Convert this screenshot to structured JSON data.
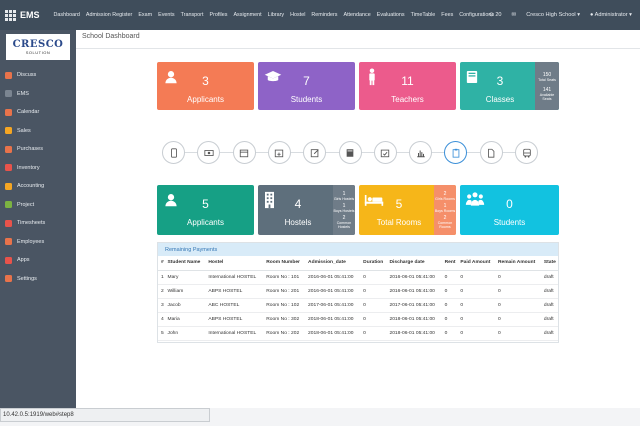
{
  "topbar": {
    "brand": "EMS",
    "menu": [
      "Dashboard",
      "Admission Register",
      "Exam",
      "Events",
      "Transport",
      "Profiles",
      "Assignment",
      "Library",
      "Hostel",
      "Reminders",
      "Attendance",
      "Evaluations",
      "TimeTable",
      "Fees",
      "Configurations"
    ],
    "notifications": "20",
    "company": "Cresco High School",
    "user": "Administrator"
  },
  "sidebar": {
    "logo_main": "CRESCO",
    "logo_sub": "SOLUTION",
    "items": [
      {
        "label": "Discuss",
        "icon": "chat-icon",
        "color": "#e8734b"
      },
      {
        "label": "EMS",
        "icon": "school-icon",
        "color": "#7b8591"
      },
      {
        "label": "Calendar",
        "icon": "calendar-icon",
        "color": "#e8734b"
      },
      {
        "label": "Sales",
        "icon": "chart-icon",
        "color": "#f5a623"
      },
      {
        "label": "Purchases",
        "icon": "cart-icon",
        "color": "#e8734b"
      },
      {
        "label": "Inventory",
        "icon": "box-icon",
        "color": "#e8534b"
      },
      {
        "label": "Accounting",
        "icon": "calculator-icon",
        "color": "#f5a623"
      },
      {
        "label": "Project",
        "icon": "puzzle-icon",
        "color": "#7cb342"
      },
      {
        "label": "Timesheets",
        "icon": "clock-icon",
        "color": "#e8534b"
      },
      {
        "label": "Employees",
        "icon": "users-icon",
        "color": "#e8734b"
      },
      {
        "label": "Apps",
        "icon": "apps-icon",
        "color": "#e8534b"
      },
      {
        "label": "Settings",
        "icon": "gear-icon",
        "color": "#e8734b"
      }
    ]
  },
  "breadcrumb": "School Dashboard",
  "top_cards": [
    {
      "label": "Applicants",
      "value": "3",
      "icon": "user-icon",
      "color": "#f47b55"
    },
    {
      "label": "Students",
      "value": "7",
      "icon": "graduation-cap-icon",
      "color": "#8e63c7"
    },
    {
      "label": "Teachers",
      "value": "11",
      "icon": "person-icon",
      "color": "#ec5b8c"
    },
    {
      "label": "Classes",
      "value": "3",
      "icon": "book-icon",
      "color": "#2fb2a5"
    }
  ],
  "classes_side": {
    "total_seats": "150",
    "total_seats_label": "Total Seats",
    "available": "141",
    "available_label": "Available Seats"
  },
  "steps": [
    "mobile-icon",
    "money-icon",
    "calendar-icon",
    "calendar-plus-icon",
    "edit-icon",
    "book-icon",
    "calendar-check-icon",
    "bar-chart-icon",
    "clipboard-icon",
    "file-icon",
    "bus-icon"
  ],
  "bottom_cards": [
    {
      "label": "Applicants",
      "value": "5",
      "icon": "user-icon",
      "color": "#16a085"
    },
    {
      "label": "Hostels",
      "value": "4",
      "icon": "building-icon",
      "color": "#5e6f7c"
    },
    {
      "label": "Total Rooms",
      "value": "5",
      "icon": "bed-icon",
      "color": "#f6b619"
    },
    {
      "label": "Students",
      "value": "0",
      "icon": "group-icon",
      "color": "#12c2e0"
    }
  ],
  "hostel_side": [
    {
      "n": "1",
      "label": "Girls Hostels"
    },
    {
      "n": "1",
      "label": "Boys Hostels"
    },
    {
      "n": "2",
      "label": "Common Hostels"
    }
  ],
  "rooms_side": [
    {
      "n": "2",
      "label": "Girls Rooms"
    },
    {
      "n": "1",
      "label": "Boys Rooms"
    },
    {
      "n": "2",
      "label": "Common Rooms"
    }
  ],
  "payments": {
    "title": "Remaining Payments",
    "columns": [
      "#",
      "Student Name",
      "Hostel",
      "Room Number",
      "Admission_date",
      "Duration",
      "Discharge date",
      "Rent",
      "Paid Amount",
      "Remain Amount",
      "State"
    ],
    "rows": [
      [
        "1",
        "Mary",
        "International HOSTEL",
        "Room No : 101",
        "2016-06-01 05:41:00",
        "0",
        "2016-06-01 05:41:00",
        "0",
        "0",
        "0",
        "draft"
      ],
      [
        "2",
        "William",
        "ABPS HOSTEL",
        "Room No : 201",
        "2016-06-01 05:41:00",
        "0",
        "2016-06-01 05:41:00",
        "0",
        "0",
        "0",
        "draft"
      ],
      [
        "3",
        "Jacob",
        "ABC HOSTEL",
        "Room No : 102",
        "2017-06-01 05:41:00",
        "0",
        "2017-06-01 05:41:00",
        "0",
        "0",
        "0",
        "draft"
      ],
      [
        "4",
        "Maria",
        "ABPS HOSTEL",
        "Room No : 302",
        "2018-06-01 05:41:00",
        "0",
        "2018-06-01 05:41:00",
        "0",
        "0",
        "0",
        "draft"
      ],
      [
        "5",
        "John",
        "International HOSTEL",
        "Room No : 202",
        "2018-06-01 05:41:00",
        "0",
        "2018-06-01 05:41:00",
        "0",
        "0",
        "0",
        "draft"
      ]
    ]
  },
  "status_url": "10.42.0.5:1919/web#step8"
}
